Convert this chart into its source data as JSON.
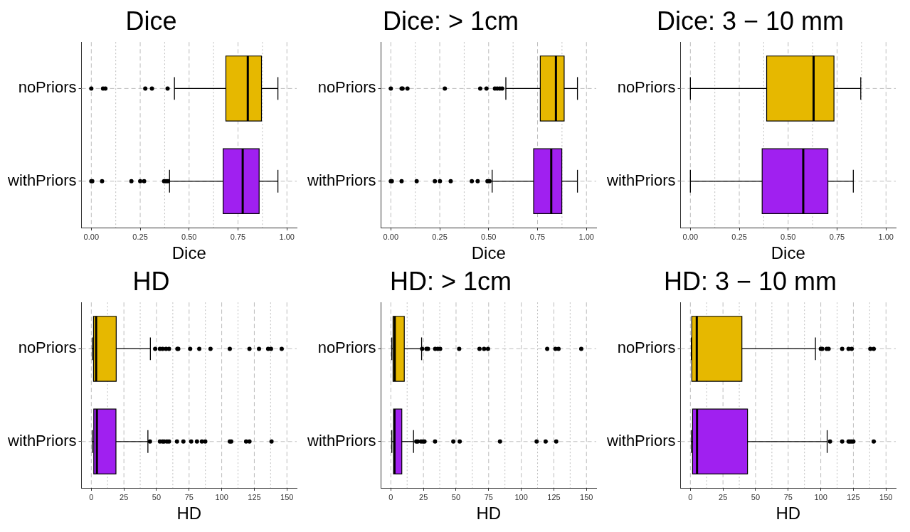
{
  "chart_data": [
    {
      "type": "box",
      "title": "Dice",
      "xlabel": "Dice",
      "orientation": "horizontal",
      "categories": [
        "noPriors",
        "withPriors"
      ],
      "colors": [
        "#e6b800",
        "#a020f0"
      ],
      "grid": true,
      "xlim": [
        -0.05,
        1.05
      ],
      "xticks": [
        {
          "value": 0,
          "label": "0.00"
        },
        {
          "value": 0.25,
          "label": "0.25"
        },
        {
          "value": 0.5,
          "label": "0.50"
        },
        {
          "value": 0.75,
          "label": "0.75"
        },
        {
          "value": 1,
          "label": "1.00"
        }
      ],
      "boxes": [
        {
          "low": 0.425,
          "q1": 0.688,
          "median": 0.8,
          "q3": 0.87,
          "high": 0.954,
          "outliers": [
            0,
            0.06,
            0.072,
            0.276,
            0.31,
            0.39
          ]
        },
        {
          "low": 0.4,
          "q1": 0.674,
          "median": 0.774,
          "q3": 0.858,
          "high": 0.954,
          "outliers": [
            0,
            0.005,
            0.055,
            0.205,
            0.25,
            0.27,
            0.372,
            0.382,
            0.392
          ]
        }
      ]
    },
    {
      "type": "box",
      "title": "Dice: > 1cm",
      "xlabel": "Dice",
      "orientation": "horizontal",
      "categories": [
        "noPriors",
        "withPriors"
      ],
      "colors": [
        "#e6b800",
        "#a020f0"
      ],
      "grid": true,
      "xlim": [
        -0.05,
        1.05
      ],
      "xticks": [
        {
          "value": 0,
          "label": "0.00"
        },
        {
          "value": 0.25,
          "label": "0.25"
        },
        {
          "value": 0.5,
          "label": "0.50"
        },
        {
          "value": 0.75,
          "label": "0.75"
        },
        {
          "value": 1,
          "label": "1.00"
        }
      ],
      "boxes": [
        {
          "low": 0.588,
          "q1": 0.764,
          "median": 0.844,
          "q3": 0.886,
          "high": 0.954,
          "outliers": [
            0,
            0.055,
            0.06,
            0.085,
            0.276,
            0.457,
            0.489,
            0.532,
            0.544,
            0.557,
            0.569
          ]
        },
        {
          "low": 0.518,
          "q1": 0.73,
          "median": 0.82,
          "q3": 0.874,
          "high": 0.954,
          "outliers": [
            0,
            0.005,
            0.055,
            0.132,
            0.225,
            0.251,
            0.306,
            0.414,
            0.444,
            0.494,
            0.504
          ]
        }
      ]
    },
    {
      "type": "box",
      "title": "Dice: 3 − 10 mm",
      "xlabel": "Dice",
      "orientation": "horizontal",
      "categories": [
        "noPriors",
        "withPriors"
      ],
      "colors": [
        "#e6b800",
        "#a020f0"
      ],
      "grid": true,
      "xlim": [
        -0.05,
        1.05
      ],
      "xticks": [
        {
          "value": 0,
          "label": "0.00"
        },
        {
          "value": 0.25,
          "label": "0.25"
        },
        {
          "value": 0.5,
          "label": "0.50"
        },
        {
          "value": 0.75,
          "label": "0.75"
        },
        {
          "value": 1,
          "label": "1.00"
        }
      ],
      "boxes": [
        {
          "low": 0,
          "q1": 0.39,
          "median": 0.63,
          "q3": 0.734,
          "high": 0.871
        },
        {
          "low": 0,
          "q1": 0.367,
          "median": 0.577,
          "q3": 0.703,
          "high": 0.833
        }
      ]
    },
    {
      "type": "box",
      "title": "HD",
      "xlabel": "HD",
      "orientation": "horizontal",
      "categories": [
        "noPriors",
        "withPriors"
      ],
      "colors": [
        "#e6b800",
        "#a020f0"
      ],
      "grid": true,
      "xlim": [
        -7.5,
        157.5
      ],
      "xticks": [
        0,
        25,
        50,
        75,
        100,
        125,
        150
      ],
      "boxes": [
        {
          "low": 0.75,
          "q1": 1.7,
          "median": 3.7,
          "q3": 19.1,
          "high": 45.3,
          "outliers": [
            49,
            52.6,
            54.7,
            57.3,
            59.6,
            66,
            66.7,
            75.8,
            82.8,
            91.4,
            106.2,
            121.3,
            128.6,
            135.6,
            137.8,
            146
          ]
        },
        {
          "low": 0.75,
          "q1": 1.9,
          "median": 4.3,
          "q3": 18.9,
          "high": 43.4,
          "outliers": [
            45,
            52.6,
            54.7,
            55.8,
            58,
            59.6,
            65.7,
            70.6,
            76.6,
            81,
            84.8,
            87.4,
            106.2,
            107.3,
            118.7,
            121.3,
            138.2
          ]
        }
      ]
    },
    {
      "type": "box",
      "title": "HD: > 1cm",
      "xlabel": "HD",
      "orientation": "horizontal",
      "categories": [
        "noPriors",
        "withPriors"
      ],
      "colors": [
        "#e6b800",
        "#a020f0"
      ],
      "grid": true,
      "xlim": [
        -7.5,
        157.5
      ],
      "xticks": [
        0,
        25,
        50,
        75,
        100,
        125,
        150
      ],
      "boxes": [
        {
          "low": 0.75,
          "q1": 1.7,
          "median": 3,
          "q3": 10.3,
          "high": 23.6,
          "outliers": [
            24,
            27.3,
            28.5,
            34,
            36,
            37.8,
            52.4,
            68,
            71.5,
            74.5,
            119.9,
            126.2,
            128.6,
            146
          ]
        },
        {
          "low": 0.75,
          "q1": 2.1,
          "median": 2.8,
          "q3": 8.4,
          "high": 17.4,
          "outliers": [
            19.5,
            20.6,
            23.2,
            24.7,
            25.8,
            33.9,
            47.9,
            52.8,
            83.7,
            111.8,
            118.7,
            126.8
          ]
        }
      ]
    },
    {
      "type": "box",
      "title": "HD: 3 − 10 mm",
      "xlabel": "HD",
      "orientation": "horizontal",
      "categories": [
        "noPriors",
        "withPriors"
      ],
      "colors": [
        "#e6b800",
        "#a020f0"
      ],
      "grid": true,
      "xlim": [
        -7.5,
        157.5
      ],
      "xticks": [
        0,
        25,
        50,
        75,
        100,
        125,
        150
      ],
      "boxes": [
        {
          "low": 0.75,
          "q1": 1.1,
          "median": 4.9,
          "q3": 39.5,
          "high": 95.9,
          "outliers": [
            100,
            101.1,
            104.5,
            106,
            116.4,
            121.3,
            123.7,
            138,
            140.6
          ]
        },
        {
          "low": 0.75,
          "q1": 1.7,
          "median": 5.1,
          "q3": 43.8,
          "high": 104.9,
          "outliers": [
            107.1,
            116.4,
            121.3,
            122.4,
            123.7,
            125,
            140.6
          ]
        }
      ]
    }
  ]
}
